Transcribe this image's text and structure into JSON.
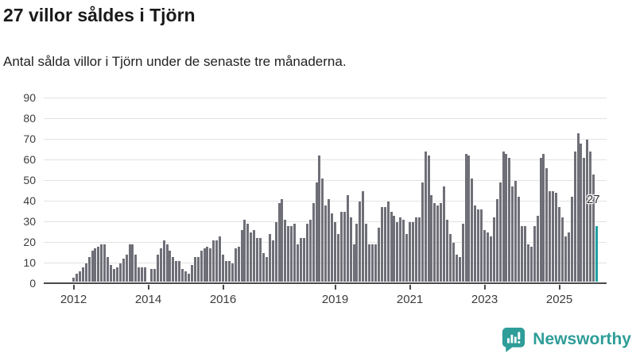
{
  "title": "27 villor såldes i Tjörn",
  "subtitle": "Antal sålda villor i Tjörn under de senaste tre månaderna.",
  "footer": {
    "brand": "Newsworthy"
  },
  "colors": {
    "bar": "#6f6f78",
    "highlight": "#1aa0a1",
    "brand_teal": "#2f9d98",
    "grid": "#e2e2e2",
    "axis": "#4a4a4a"
  },
  "chart_data": {
    "type": "bar",
    "title": "27 villor såldes i Tjörn",
    "subtitle": "Antal sålda villor i Tjörn under de senaste tre månaderna.",
    "xlabel": "",
    "ylabel": "",
    "ylim": [
      0,
      90
    ],
    "yticks": [
      0,
      10,
      20,
      30,
      40,
      50,
      60,
      70,
      80,
      90
    ],
    "grid": "horizontal",
    "legend": "none",
    "x_unit": "month",
    "x_start_year": 2012,
    "x_tick_labels": [
      "2012",
      "2014",
      "2016",
      "2019",
      "2021",
      "2023",
      "2025"
    ],
    "x_tick_indices": [
      0,
      24,
      48,
      84,
      108,
      132,
      156
    ],
    "values": [
      2,
      4,
      5,
      7,
      9,
      12,
      15,
      16,
      17,
      18,
      18,
      12,
      8,
      6,
      7,
      9,
      11,
      13,
      18,
      18,
      13,
      7,
      7,
      7,
      0,
      6,
      6,
      13,
      16,
      20,
      18,
      15,
      12,
      10,
      10,
      6,
      5,
      4,
      8,
      12,
      12,
      15,
      16,
      17,
      16,
      20,
      20,
      22,
      13,
      10,
      10,
      9,
      16,
      17,
      25,
      30,
      28,
      24,
      25,
      21,
      21,
      14,
      12,
      23,
      20,
      29,
      38,
      40,
      30,
      27,
      27,
      28,
      18,
      21,
      21,
      28,
      30,
      38,
      48,
      61,
      50,
      37,
      40,
      33,
      29,
      23,
      34,
      34,
      42,
      31,
      18,
      28,
      39,
      44,
      28,
      18,
      18,
      18,
      26,
      36,
      36,
      39,
      34,
      32,
      29,
      31,
      30,
      23,
      29,
      29,
      31,
      31,
      48,
      63,
      61,
      42,
      38,
      37,
      38,
      46,
      30,
      23,
      19,
      13,
      12,
      28,
      62,
      61,
      50,
      37,
      35,
      35,
      25,
      24,
      22,
      31,
      40,
      48,
      63,
      62,
      60,
      46,
      49,
      41,
      27,
      27,
      18,
      17,
      27,
      32,
      60,
      62,
      55,
      44,
      44,
      43,
      36,
      31,
      22,
      24,
      41,
      63,
      72,
      67,
      60,
      69,
      63,
      52,
      27
    ],
    "highlight_index": 168,
    "highlight_value": 27,
    "highlight_label": "27"
  }
}
